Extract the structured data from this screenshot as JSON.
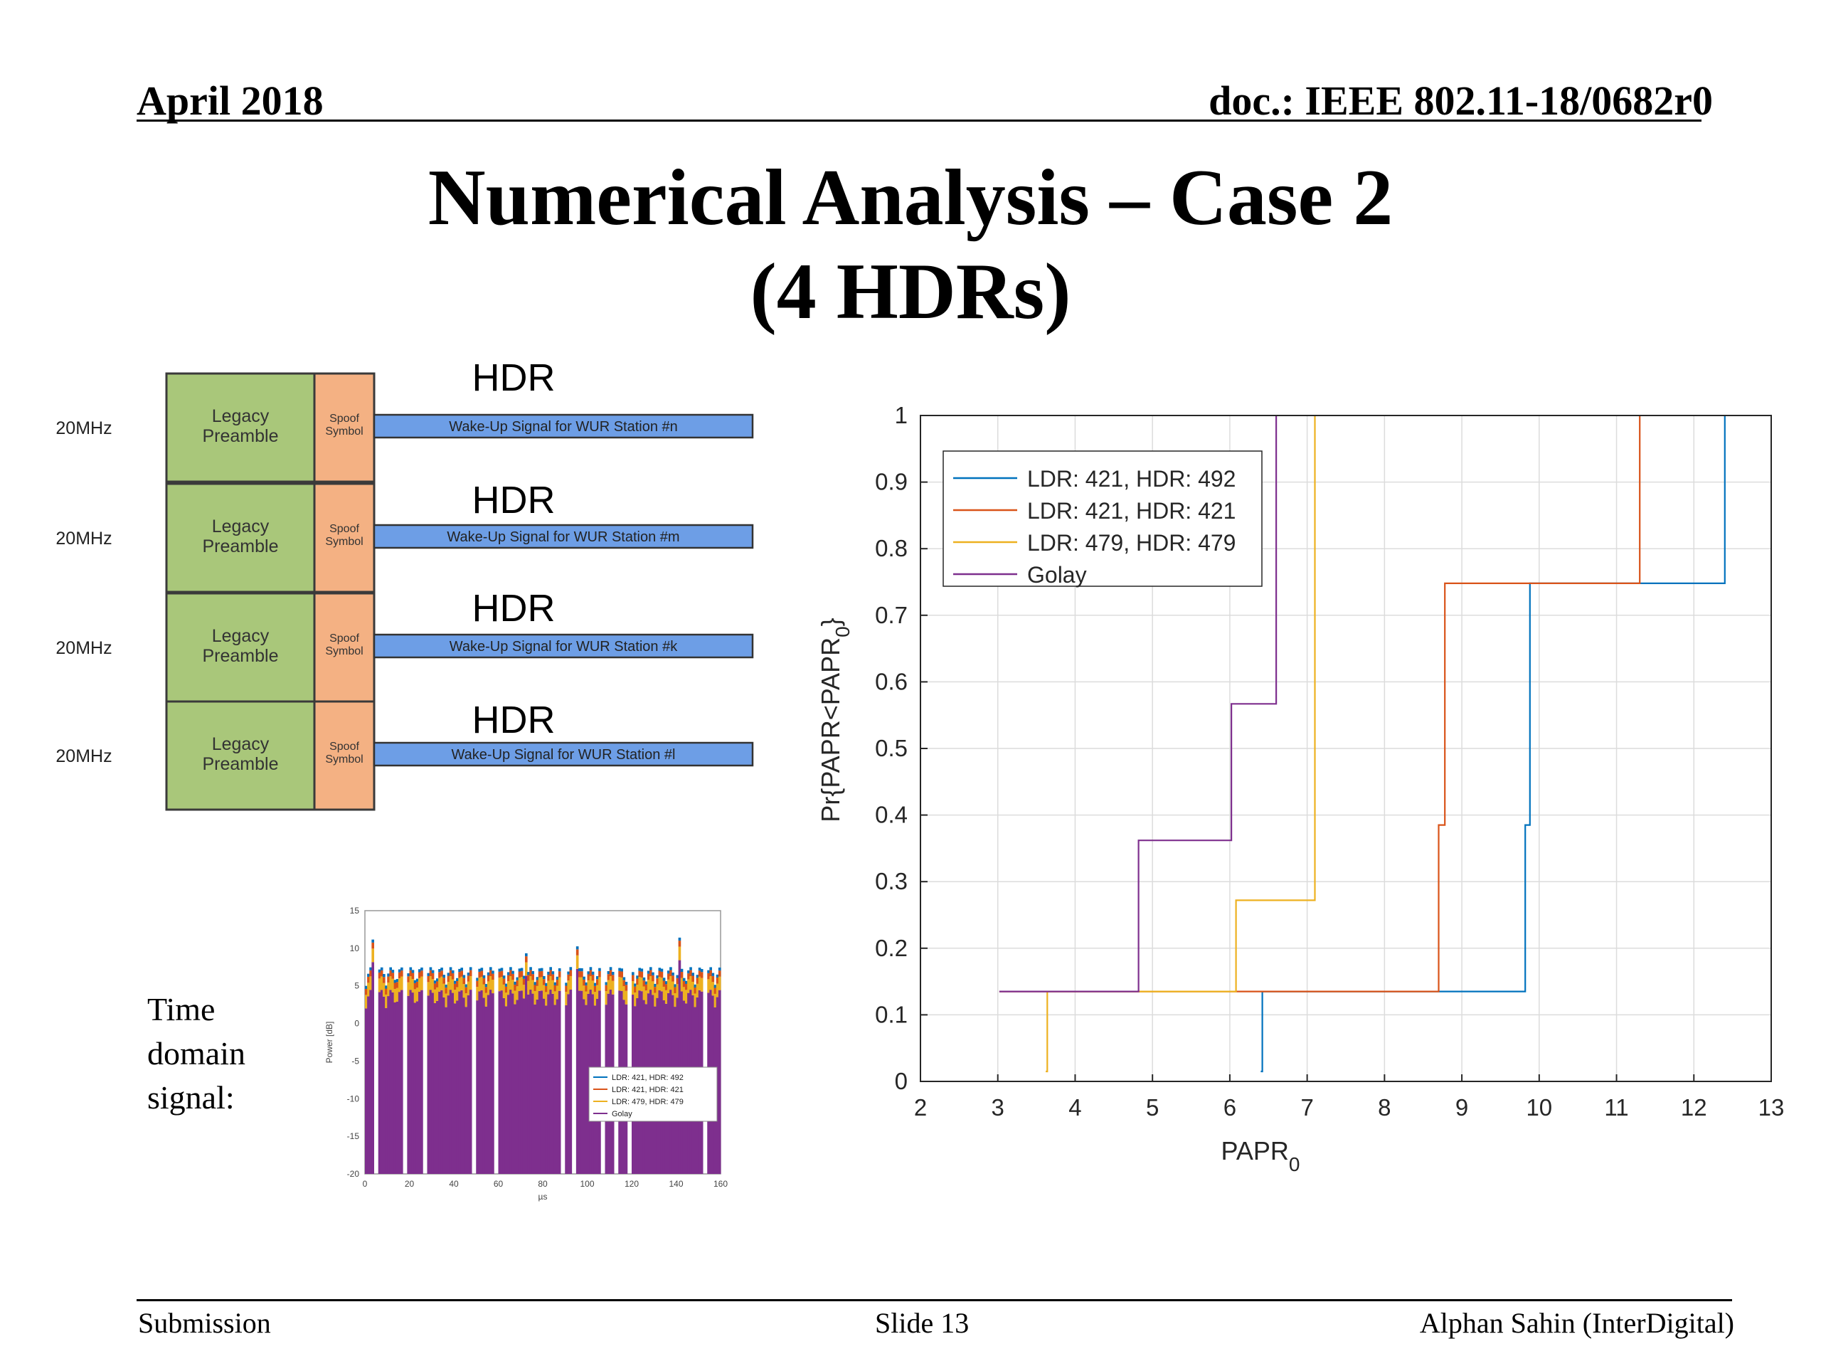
{
  "header": {
    "date": "April 2018",
    "doc": "doc.: IEEE 802.11-18/0682r0"
  },
  "title": {
    "line1": "Numerical Analysis – Case 2",
    "line2": "(4 HDRs)"
  },
  "diagram": {
    "rows": [
      {
        "bw": "20MHz",
        "preamble_l1": "Legacy",
        "preamble_l2": "Preamble",
        "spoof_l1": "Spoof",
        "spoof_l2": "Symbol",
        "rate": "HDR",
        "signal": "Wake-Up Signal for WUR Station #n"
      },
      {
        "bw": "20MHz",
        "preamble_l1": "Legacy",
        "preamble_l2": "Preamble",
        "spoof_l1": "Spoof",
        "spoof_l2": "Symbol",
        "rate": "HDR",
        "signal": "Wake-Up Signal for WUR Station #m"
      },
      {
        "bw": "20MHz",
        "preamble_l1": "Legacy",
        "preamble_l2": "Preamble",
        "spoof_l1": "Spoof",
        "spoof_l2": "Symbol",
        "rate": "HDR",
        "signal": "Wake-Up Signal for WUR Station #k"
      },
      {
        "bw": "20MHz",
        "preamble_l1": "Legacy",
        "preamble_l2": "Preamble",
        "spoof_l1": "Spoof",
        "spoof_l2": "Symbol",
        "rate": "HDR",
        "signal": "Wake-Up Signal for WUR Station #l"
      }
    ]
  },
  "time_domain": {
    "label_lines": [
      "Time",
      "domain",
      "signal:"
    ],
    "ylabel": "Power [dB]",
    "xlabel": "µs",
    "yticks": [
      "15",
      "10",
      "5",
      "0",
      "-5",
      "-10",
      "-15",
      "-20"
    ],
    "xticks": [
      "0",
      "20",
      "40",
      "60",
      "80",
      "100",
      "120",
      "140",
      "160"
    ],
    "legend": [
      "LDR: 421, HDR: 492",
      "LDR: 421, HDR: 421",
      "LDR: 479, HDR: 479",
      "Golay"
    ],
    "colors": [
      "#0072BD",
      "#D95319",
      "#EDB120",
      "#7E2F8E"
    ]
  },
  "chart_data": {
    "type": "line",
    "title": "",
    "xlabel": "PAPR",
    "xlabel_sub": "0",
    "ylabel": "Pr{PAPR<PAPR",
    "ylabel_sub": "0",
    "ylabel_end": "}",
    "xlim": [
      2,
      13
    ],
    "ylim": [
      0,
      1
    ],
    "xticks": [
      2,
      3,
      4,
      5,
      6,
      7,
      8,
      9,
      10,
      11,
      12,
      13
    ],
    "yticks": [
      0,
      0.1,
      0.2,
      0.3,
      0.4,
      0.5,
      0.6,
      0.7,
      0.8,
      0.9,
      1
    ],
    "grid": true,
    "legend_position": "top-left",
    "series": [
      {
        "name": "LDR: 421, HDR: 492",
        "color": "#0072BD",
        "x": [
          6.4,
          6.42,
          6.42,
          9.82,
          9.82,
          9.88,
          9.88,
          12.4,
          12.4
        ],
        "y": [
          0.015,
          0.015,
          0.135,
          0.135,
          0.385,
          0.385,
          0.748,
          0.748,
          1.0
        ]
      },
      {
        "name": "LDR: 421, HDR: 421",
        "color": "#D95319",
        "x": [
          3.02,
          8.7,
          8.7,
          8.78,
          8.78,
          11.3,
          11.3
        ],
        "y": [
          0.135,
          0.135,
          0.385,
          0.385,
          0.748,
          0.748,
          1.0
        ]
      },
      {
        "name": "LDR: 479, HDR: 479",
        "color": "#EDB120",
        "x": [
          3.62,
          3.64,
          3.64,
          6.08,
          6.08,
          7.1,
          7.1
        ],
        "y": [
          0.015,
          0.015,
          0.135,
          0.135,
          0.272,
          0.272,
          1.0
        ]
      },
      {
        "name": "Golay",
        "color": "#7E2F8E",
        "x": [
          3.02,
          4.82,
          4.82,
          6.02,
          6.02,
          6.6,
          6.6
        ],
        "y": [
          0.135,
          0.135,
          0.362,
          0.362,
          0.567,
          0.567,
          1.0
        ]
      }
    ]
  },
  "footer": {
    "left": "Submission",
    "center": "Slide 13",
    "right": "Alphan Sahin (InterDigital)"
  }
}
